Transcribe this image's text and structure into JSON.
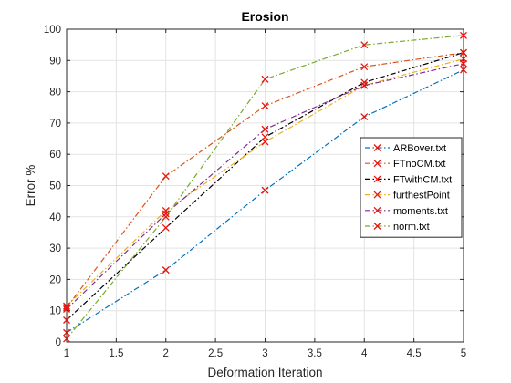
{
  "chart_data": {
    "type": "line",
    "title": "Erosion",
    "xlabel": "Deformation Iteration",
    "ylabel": "Error %",
    "xlim": [
      1,
      5
    ],
    "ylim": [
      0,
      100
    ],
    "x_ticks": [
      "1",
      "1.5",
      "2",
      "2.5",
      "3",
      "3.5",
      "4",
      "4.5",
      "5"
    ],
    "y_ticks": [
      "0",
      "10",
      "20",
      "30",
      "40",
      "50",
      "60",
      "70",
      "80",
      "90",
      "100"
    ],
    "grid": true,
    "legend_position": "right",
    "marker": "x",
    "marker_color": "#e8150e",
    "x": [
      1,
      2,
      3,
      4,
      5
    ],
    "series": [
      {
        "name": "ARBover.txt",
        "color": "#0072bd",
        "values": [
          3,
          23,
          48.5,
          72,
          87
        ]
      },
      {
        "name": "FTnoCM.txt",
        "color": "#d95319",
        "values": [
          11,
          53,
          75.5,
          88,
          92.5
        ]
      },
      {
        "name": "FTwithCM.txt",
        "color": "#000000",
        "values": [
          7,
          36.5,
          65.5,
          83,
          92.5
        ]
      },
      {
        "name": "furthestPoint",
        "color": "#edb120",
        "values": [
          11.5,
          42,
          64,
          82,
          90.5
        ]
      },
      {
        "name": "moments.txt",
        "color": "#7e2f8e",
        "values": [
          10.5,
          41,
          68,
          82,
          89
        ]
      },
      {
        "name": "norm.txt",
        "color": "#77ac30",
        "values": [
          1,
          40,
          84,
          95,
          98
        ]
      }
    ]
  }
}
